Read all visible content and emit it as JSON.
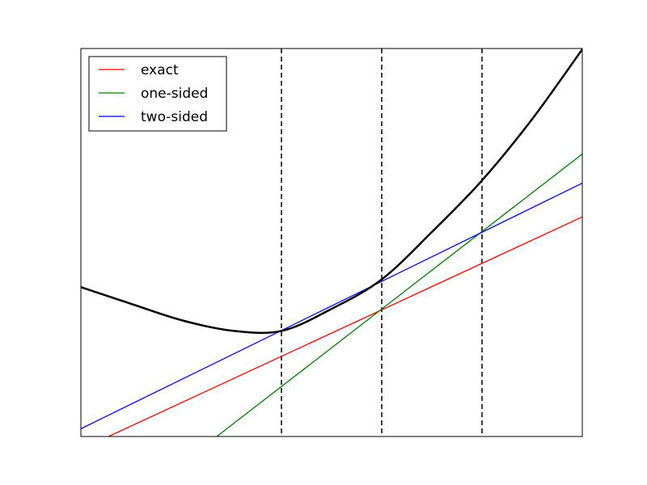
{
  "chart_data": {
    "type": "line",
    "title": "",
    "xlabel": "",
    "ylabel": "",
    "xlim": [
      0,
      1
    ],
    "ylim": [
      0,
      1
    ],
    "axis_ticks": "none",
    "grid": false,
    "legend": {
      "placement": "top-left",
      "entries": [
        {
          "label": "exact",
          "color": "#ff0000"
        },
        {
          "label": "one-sided",
          "color": "#008000"
        },
        {
          "label": "two-sided",
          "color": "#0000ff"
        }
      ]
    },
    "curve": {
      "color": "#000000",
      "x": [
        0,
        0.1,
        0.2,
        0.3,
        0.4,
        0.5,
        0.6,
        0.7,
        0.8,
        0.9,
        1.0
      ],
      "y": [
        0.385,
        0.342,
        0.3,
        0.273,
        0.272,
        0.329,
        0.405,
        0.527,
        0.66,
        0.818,
        0.998
      ]
    },
    "series": [
      {
        "name": "exact",
        "color": "#ff0000",
        "x": [
          0,
          1
        ],
        "y": [
          -0.033,
          0.566
        ]
      },
      {
        "name": "one-sided",
        "color": "#008000",
        "x": [
          0.271,
          1
        ],
        "y": [
          0.0,
          0.728
        ]
      },
      {
        "name": "two-sided",
        "color": "#0000ff",
        "x": [
          0,
          1
        ],
        "y": [
          0.02,
          0.653
        ]
      }
    ],
    "vertical_lines": {
      "style": "dashed",
      "color": "#000000",
      "x": [
        0.4,
        0.6,
        0.8
      ]
    }
  }
}
